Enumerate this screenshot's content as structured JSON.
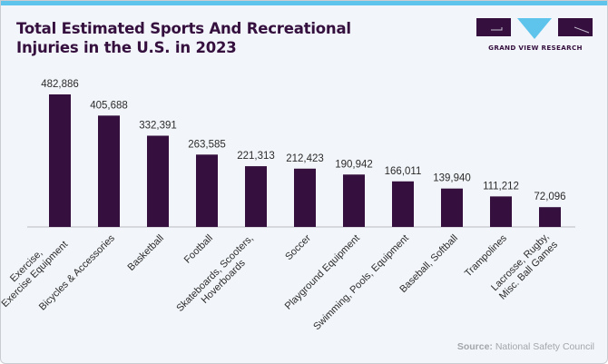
{
  "header": {
    "title_line1": "Total Estimated Sports And Recreational",
    "title_line2": "Injuries in the U.S. in 2023"
  },
  "brand": {
    "name": "GRAND VIEW RESEARCH",
    "colors": {
      "primary": "#35103f",
      "accent": "#5ec4ec"
    }
  },
  "source": {
    "label": "Source:",
    "text": "National Safety Council"
  },
  "chart_data": {
    "type": "bar",
    "title": "Total Estimated Sports And Recreational Injuries in the U.S. in 2023",
    "xlabel": "",
    "ylabel": "",
    "ylim": [
      0,
      482886
    ],
    "grid": false,
    "bar_color": "#35103f",
    "categories": [
      [
        "Exercise,",
        "Exercise Equipment"
      ],
      [
        "Bicycles & Accessories"
      ],
      [
        "Basketball"
      ],
      [
        "Football"
      ],
      [
        "Skateboards, Scooters,",
        "Hoverboards"
      ],
      [
        "Soccer"
      ],
      [
        "Playground Equipment"
      ],
      [
        "Swimming, Pools, Equipment"
      ],
      [
        "Baseball, Softball"
      ],
      [
        "Trampolines"
      ],
      [
        "Lacrosse, Rugby,",
        "Misc. Ball Games"
      ]
    ],
    "values": [
      482886,
      405688,
      332391,
      263585,
      221313,
      212423,
      190942,
      166011,
      139940,
      111212,
      72096
    ],
    "value_labels": [
      "482,886",
      "405,688",
      "332,391",
      "263,585",
      "221,313",
      "212,423",
      "190,942",
      "166,011",
      "139,940",
      "111,212",
      "72,096"
    ]
  }
}
